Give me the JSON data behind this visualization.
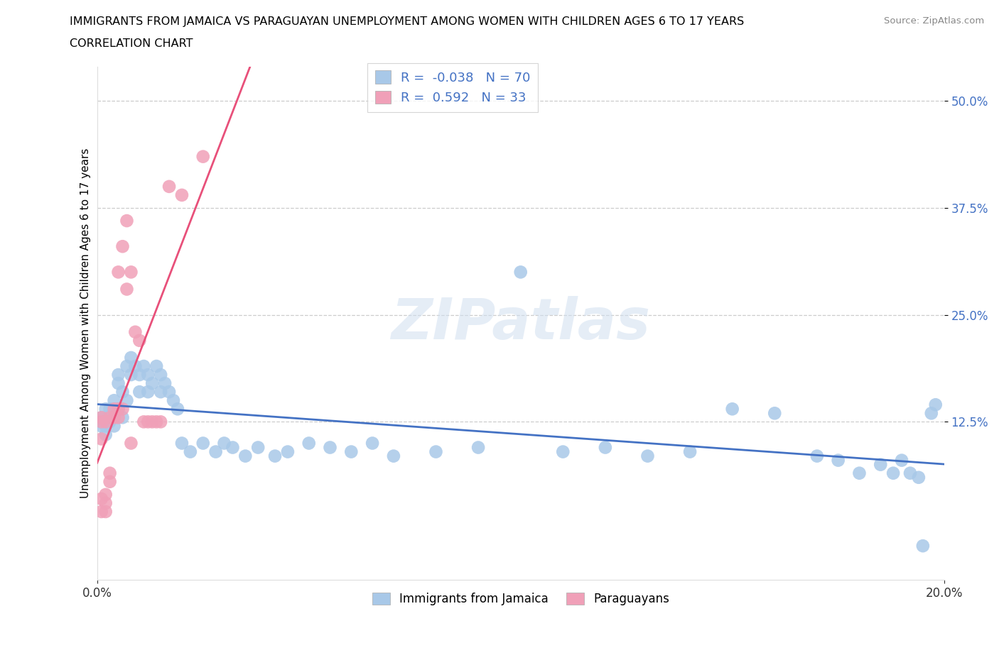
{
  "title_line1": "IMMIGRANTS FROM JAMAICA VS PARAGUAYAN UNEMPLOYMENT AMONG WOMEN WITH CHILDREN AGES 6 TO 17 YEARS",
  "title_line2": "CORRELATION CHART",
  "source": "Source: ZipAtlas.com",
  "ylabel": "Unemployment Among Women with Children Ages 6 to 17 years",
  "xlim": [
    0.0,
    0.2
  ],
  "ylim": [
    -0.06,
    0.54
  ],
  "ytick_vals": [
    0.125,
    0.25,
    0.375,
    0.5
  ],
  "ytick_labels": [
    "12.5%",
    "25.0%",
    "37.5%",
    "50.0%"
  ],
  "xtick_vals": [
    0.0,
    0.2
  ],
  "xtick_labels": [
    "0.0%",
    "20.0%"
  ],
  "grid_color": "#cccccc",
  "bg_color": "#ffffff",
  "jamaica_color": "#a8c8e8",
  "paraguay_color": "#f0a0b8",
  "jamaica_line_color": "#4472c4",
  "paraguay_line_color": "#e8507a",
  "tick_color": "#4472c4",
  "jamaica_R": -0.038,
  "jamaica_N": 70,
  "paraguay_R": 0.592,
  "paraguay_N": 33,
  "jamaica_x": [
    0.001,
    0.001,
    0.001,
    0.002,
    0.002,
    0.002,
    0.002,
    0.003,
    0.003,
    0.003,
    0.004,
    0.004,
    0.005,
    0.005,
    0.005,
    0.006,
    0.006,
    0.007,
    0.007,
    0.008,
    0.008,
    0.009,
    0.01,
    0.01,
    0.011,
    0.012,
    0.012,
    0.013,
    0.014,
    0.015,
    0.015,
    0.016,
    0.017,
    0.018,
    0.019,
    0.02,
    0.022,
    0.025,
    0.028,
    0.03,
    0.032,
    0.035,
    0.038,
    0.042,
    0.045,
    0.05,
    0.055,
    0.06,
    0.065,
    0.07,
    0.08,
    0.09,
    0.1,
    0.11,
    0.12,
    0.13,
    0.14,
    0.15,
    0.16,
    0.17,
    0.175,
    0.18,
    0.185,
    0.188,
    0.19,
    0.192,
    0.194,
    0.195,
    0.197,
    0.198
  ],
  "jamaica_y": [
    0.125,
    0.13,
    0.12,
    0.14,
    0.13,
    0.12,
    0.11,
    0.13,
    0.125,
    0.14,
    0.15,
    0.12,
    0.18,
    0.17,
    0.14,
    0.13,
    0.16,
    0.15,
    0.19,
    0.18,
    0.2,
    0.19,
    0.16,
    0.18,
    0.19,
    0.16,
    0.18,
    0.17,
    0.19,
    0.18,
    0.16,
    0.17,
    0.16,
    0.15,
    0.14,
    0.1,
    0.09,
    0.1,
    0.09,
    0.1,
    0.095,
    0.085,
    0.095,
    0.085,
    0.09,
    0.1,
    0.095,
    0.09,
    0.1,
    0.085,
    0.09,
    0.095,
    0.3,
    0.09,
    0.095,
    0.085,
    0.09,
    0.14,
    0.135,
    0.085,
    0.08,
    0.065,
    0.075,
    0.065,
    0.08,
    0.065,
    0.06,
    -0.02,
    0.135,
    0.145
  ],
  "paraguay_x": [
    0.001,
    0.001,
    0.001,
    0.001,
    0.001,
    0.002,
    0.002,
    0.002,
    0.002,
    0.003,
    0.003,
    0.003,
    0.004,
    0.004,
    0.005,
    0.005,
    0.005,
    0.006,
    0.006,
    0.007,
    0.007,
    0.008,
    0.008,
    0.009,
    0.01,
    0.011,
    0.012,
    0.013,
    0.014,
    0.015,
    0.017,
    0.02,
    0.025
  ],
  "paraguay_y": [
    0.13,
    0.125,
    0.105,
    0.035,
    0.02,
    0.04,
    0.03,
    0.02,
    0.125,
    0.055,
    0.065,
    0.13,
    0.14,
    0.13,
    0.14,
    0.13,
    0.3,
    0.14,
    0.33,
    0.28,
    0.36,
    0.3,
    0.1,
    0.23,
    0.22,
    0.125,
    0.125,
    0.125,
    0.125,
    0.125,
    0.4,
    0.39,
    0.435
  ],
  "watermark_text": "ZIPatlas",
  "legend_jamaica_label": "Immigrants from Jamaica",
  "legend_paraguay_label": "Paraguayans"
}
